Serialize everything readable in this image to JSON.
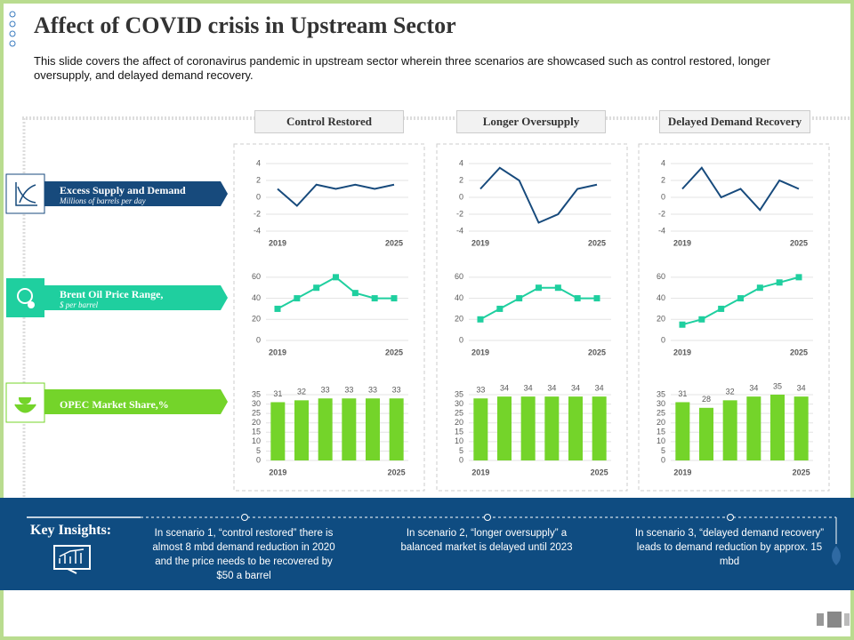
{
  "title": "Affect of COVID crisis in Upstream Sector",
  "subtitle": "This slide covers the affect of coronavirus pandemic in upstream sector wherein three scenarios are showcased such as control restored, longer oversupply, and delayed demand recovery.",
  "columns": [
    "Control Restored",
    "Longer Oversupply",
    "Delayed  Demand Recovery"
  ],
  "rows": [
    {
      "label": "Excess Supply and Demand",
      "sublabel": "Millions of barrels per day"
    },
    {
      "label": "Brent Oil Price Range,",
      "sublabel": "$ per barrel"
    },
    {
      "label": "OPEC Market Share,%"
    }
  ],
  "insights": {
    "heading": "Key Insights:",
    "items": [
      "In scenario 1, “control restored” there is almost 8 mbd demand reduction in 2020 and the price needs to be recovered by $50 a barrel",
      "In scenario 2, “longer oversupply” a balanced market is delayed until 2023",
      "In scenario 3, “delayed demand recovery” leads to demand reduction by approx. 15 mbd"
    ]
  },
  "chart_data": [
    {
      "type": "line",
      "categories": [
        "2019",
        null,
        null,
        null,
        null,
        null,
        "2025"
      ],
      "values": [
        1,
        -1,
        1.5,
        1,
        1.5,
        1,
        1.5
      ],
      "color": "#174a7c",
      "ylim": [
        -4,
        4
      ],
      "yticks": [
        -4,
        -2,
        0,
        2,
        4
      ],
      "grid": true
    },
    {
      "type": "line",
      "categories": [
        "2019",
        null,
        null,
        null,
        null,
        null,
        "2025"
      ],
      "values": [
        1,
        3.5,
        2,
        -3,
        -2,
        1,
        1.5
      ],
      "color": "#174a7c",
      "ylim": [
        -4,
        4
      ],
      "yticks": [
        -4,
        -2,
        0,
        2,
        4
      ],
      "grid": true
    },
    {
      "type": "line",
      "categories": [
        "2019",
        null,
        null,
        null,
        null,
        null,
        "2025"
      ],
      "values": [
        1,
        3.5,
        0,
        1,
        -1.5,
        2,
        1
      ],
      "color": "#174a7c",
      "ylim": [
        -4,
        4
      ],
      "yticks": [
        -4,
        -2,
        0,
        2,
        4
      ],
      "grid": true
    },
    {
      "type": "line",
      "categories": [
        "2019",
        null,
        null,
        null,
        null,
        null,
        "2025"
      ],
      "values": [
        30,
        40,
        50,
        60,
        45,
        40,
        40
      ],
      "color": "#1fcf9f",
      "marker": "square",
      "ylim": [
        0,
        70
      ],
      "yticks": [
        0,
        20,
        40,
        60
      ],
      "grid": true
    },
    {
      "type": "line",
      "categories": [
        "2019",
        null,
        null,
        null,
        null,
        null,
        "2025"
      ],
      "values": [
        20,
        30,
        40,
        50,
        50,
        40,
        40
      ],
      "color": "#1fcf9f",
      "marker": "square",
      "ylim": [
        0,
        70
      ],
      "yticks": [
        0,
        20,
        40,
        60
      ],
      "grid": true
    },
    {
      "type": "line",
      "categories": [
        "2019",
        null,
        null,
        null,
        null,
        null,
        "2025"
      ],
      "values": [
        15,
        20,
        30,
        40,
        50,
        55,
        60
      ],
      "color": "#1fcf9f",
      "marker": "square",
      "ylim": [
        0,
        70
      ],
      "yticks": [
        0,
        20,
        40,
        60
      ],
      "grid": true
    },
    {
      "type": "bar",
      "categories": [
        "2019",
        null,
        null,
        null,
        null,
        "2025"
      ],
      "values": [
        31,
        32,
        33,
        33,
        33,
        33
      ],
      "color": "#74d42a",
      "ylim": [
        0,
        35
      ],
      "yticks": [
        0,
        5,
        10,
        15,
        20,
        25,
        30,
        35
      ],
      "grid": true,
      "data_labels": true
    },
    {
      "type": "bar",
      "categories": [
        "2019",
        null,
        null,
        null,
        null,
        "2025"
      ],
      "values": [
        33,
        34,
        34,
        34,
        34,
        34
      ],
      "color": "#74d42a",
      "ylim": [
        0,
        35
      ],
      "yticks": [
        0,
        5,
        10,
        15,
        20,
        25,
        30,
        35
      ],
      "grid": true,
      "data_labels": true
    },
    {
      "type": "bar",
      "categories": [
        "2019",
        null,
        null,
        null,
        null,
        "2025"
      ],
      "values": [
        31,
        28,
        32,
        34,
        35,
        34
      ],
      "color": "#74d42a",
      "ylim": [
        0,
        35
      ],
      "yticks": [
        0,
        5,
        10,
        15,
        20,
        25,
        30,
        35
      ],
      "grid": true,
      "data_labels": true
    }
  ]
}
